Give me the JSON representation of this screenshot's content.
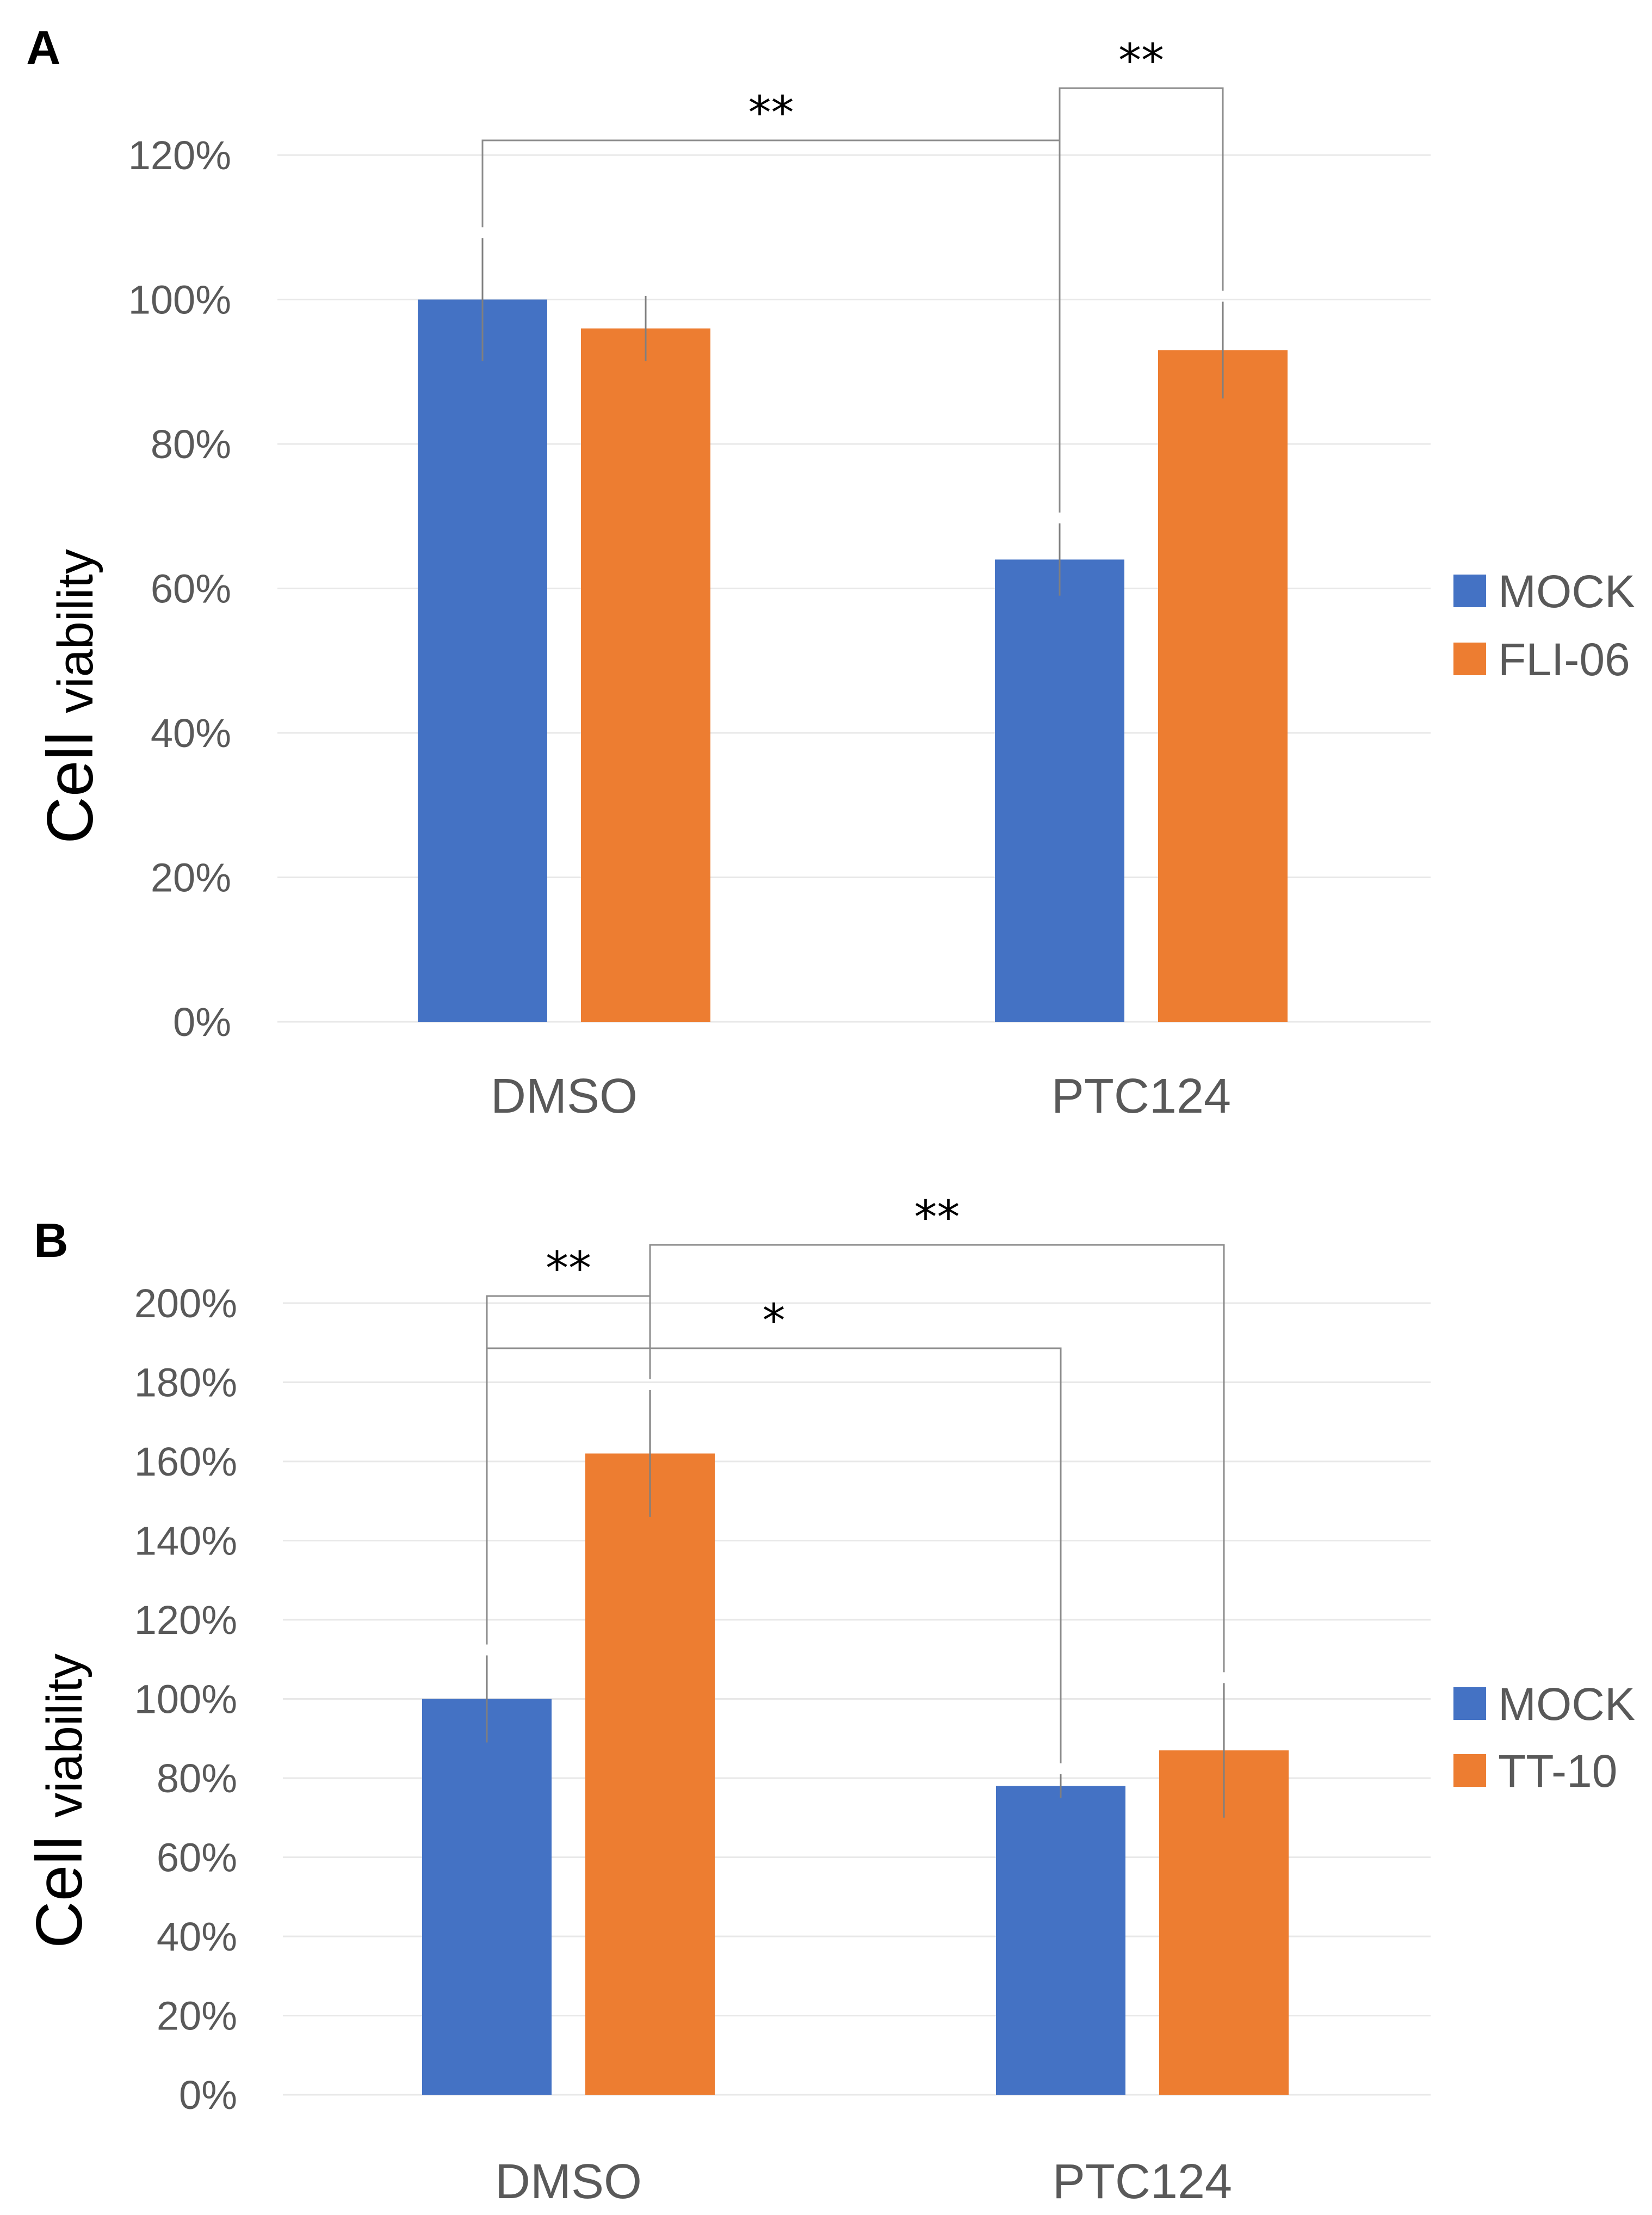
{
  "chart_data": [
    {
      "panel": "A",
      "type": "bar",
      "categories": [
        "DMSO",
        "PTC124"
      ],
      "series": [
        {
          "name": "MOCK",
          "values": [
            100,
            64
          ],
          "errors": [
            8.5,
            5
          ],
          "color": "#4472c4"
        },
        {
          "name": "FLI-06",
          "values": [
            96,
            93
          ],
          "errors": [
            4.5,
            6.7
          ],
          "color": "#ed7d31"
        }
      ],
      "ylabel_main": "Cell",
      "ylabel_sub": "viability",
      "ylim": [
        0,
        120
      ],
      "yticks": [
        "0%",
        "20%",
        "40%",
        "60%",
        "80%",
        "100%",
        "120%"
      ],
      "grid": true,
      "legend": "right",
      "significance": [
        {
          "label": "**",
          "from": "DMSO/MOCK",
          "to": "PTC124/MOCK"
        },
        {
          "label": "**",
          "from": "PTC124/MOCK",
          "to": "PTC124/FLI-06"
        }
      ]
    },
    {
      "panel": "B",
      "type": "bar",
      "categories": [
        "DMSO",
        "PTC124"
      ],
      "series": [
        {
          "name": "MOCK",
          "values": [
            100,
            78
          ],
          "errors": [
            11,
            3
          ],
          "color": "#4472c4"
        },
        {
          "name": "TT-10",
          "values": [
            162,
            87
          ],
          "errors": [
            16,
            17
          ],
          "color": "#ed7d31"
        }
      ],
      "ylabel_main": "Cell",
      "ylabel_sub": "viability",
      "ylim": [
        0,
        200
      ],
      "yticks": [
        "0%",
        "20%",
        "40%",
        "60%",
        "80%",
        "100%",
        "120%",
        "140%",
        "160%",
        "180%",
        "200%"
      ],
      "grid": true,
      "legend": "right",
      "significance": [
        {
          "label": "**",
          "from": "DMSO/MOCK",
          "to": "DMSO/TT-10"
        },
        {
          "label": "*",
          "from": "DMSO/MOCK",
          "to": "PTC124/MOCK"
        },
        {
          "label": "**",
          "from": "DMSO/TT-10",
          "to": "PTC124/TT-10"
        }
      ]
    }
  ]
}
